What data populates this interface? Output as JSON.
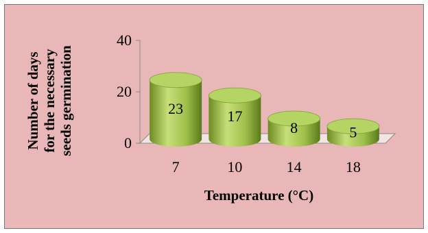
{
  "chart_data": {
    "type": "bar",
    "categories": [
      "7",
      "10",
      "14",
      "18"
    ],
    "values": [
      23,
      17,
      8,
      5
    ],
    "title": "",
    "xlabel": "Temperature (°C)",
    "ylabel_lines": [
      "Number of days",
      "for the necessary",
      "seeds germination"
    ],
    "ylim": [
      0,
      40
    ],
    "yticks": [
      0,
      20,
      40
    ],
    "grid": false,
    "legend": "none",
    "colors": {
      "bar_light": "#c9e07a",
      "bar_mid": "#9ec04a",
      "bar_dark": "#5f7f1e",
      "background": "#e9b7b8"
    }
  }
}
